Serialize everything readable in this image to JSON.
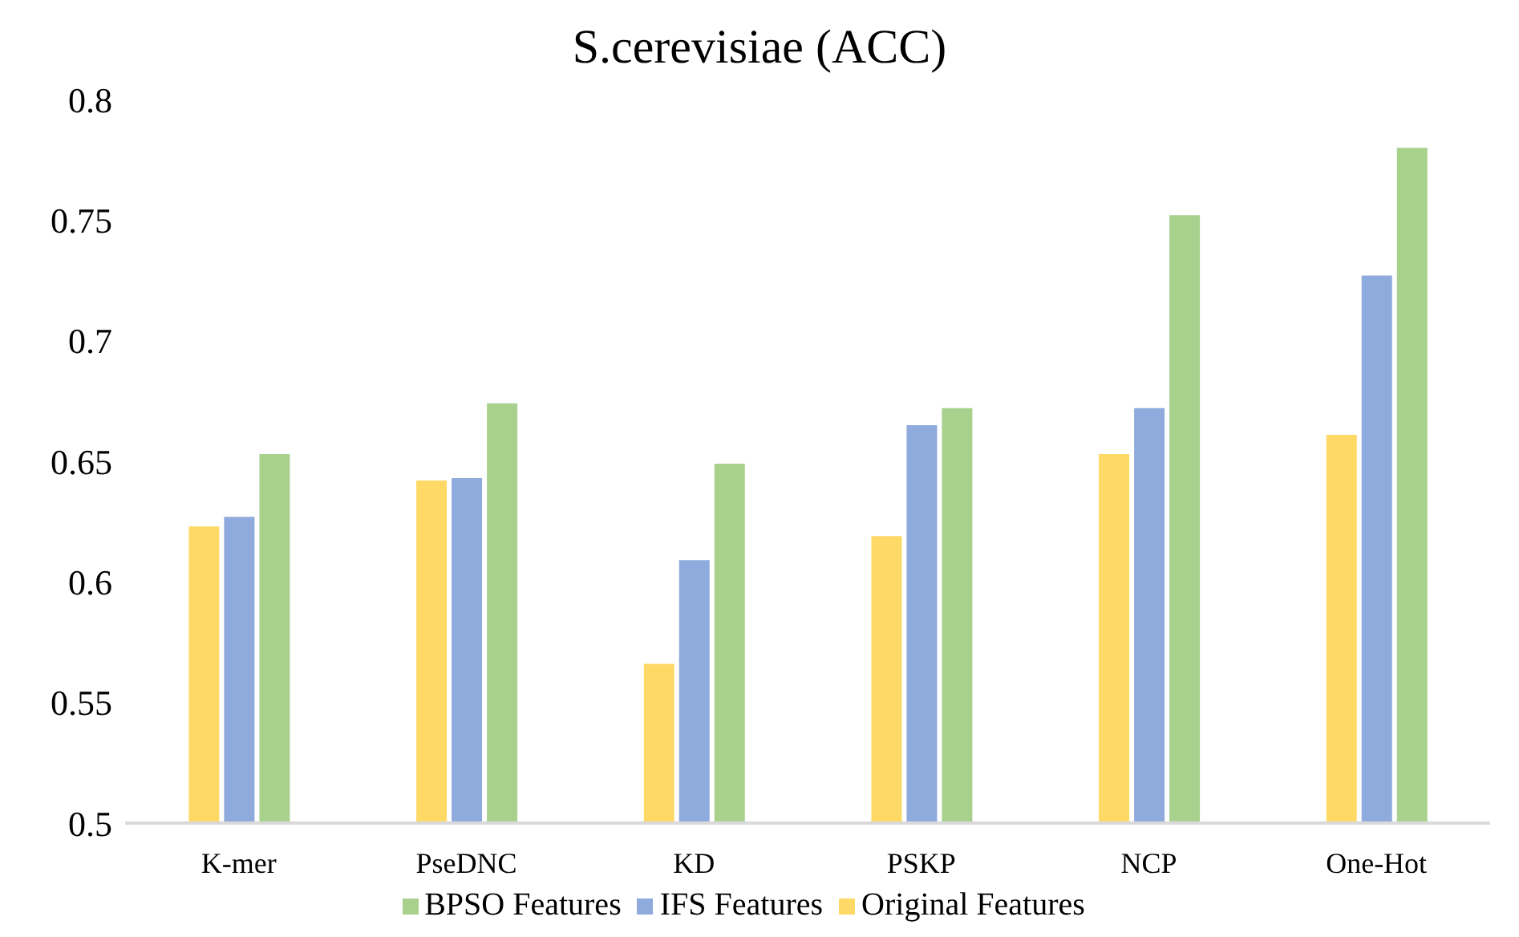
{
  "chart_data": {
    "type": "bar",
    "title": "S.cerevisiae (ACC)",
    "categories": [
      "K-mer",
      "PseDNC",
      "KD",
      "PSKP",
      "NCP",
      "One-Hot"
    ],
    "series": [
      {
        "name": "Original Features",
        "color": "#ffd966",
        "values": [
          0.623,
          0.642,
          0.566,
          0.619,
          0.653,
          0.661
        ]
      },
      {
        "name": "IFS Features",
        "color": "#8faadc",
        "values": [
          0.627,
          0.643,
          0.609,
          0.665,
          0.672,
          0.727
        ]
      },
      {
        "name": "BPSO Features",
        "color": "#a9d18e",
        "values": [
          0.653,
          0.674,
          0.649,
          0.672,
          0.752,
          0.78
        ]
      }
    ],
    "ylim": [
      0.5,
      0.8
    ],
    "yticks": [
      0.5,
      0.55,
      0.6,
      0.65,
      0.7,
      0.75,
      0.8
    ],
    "grid": false,
    "legend": "bottom"
  }
}
